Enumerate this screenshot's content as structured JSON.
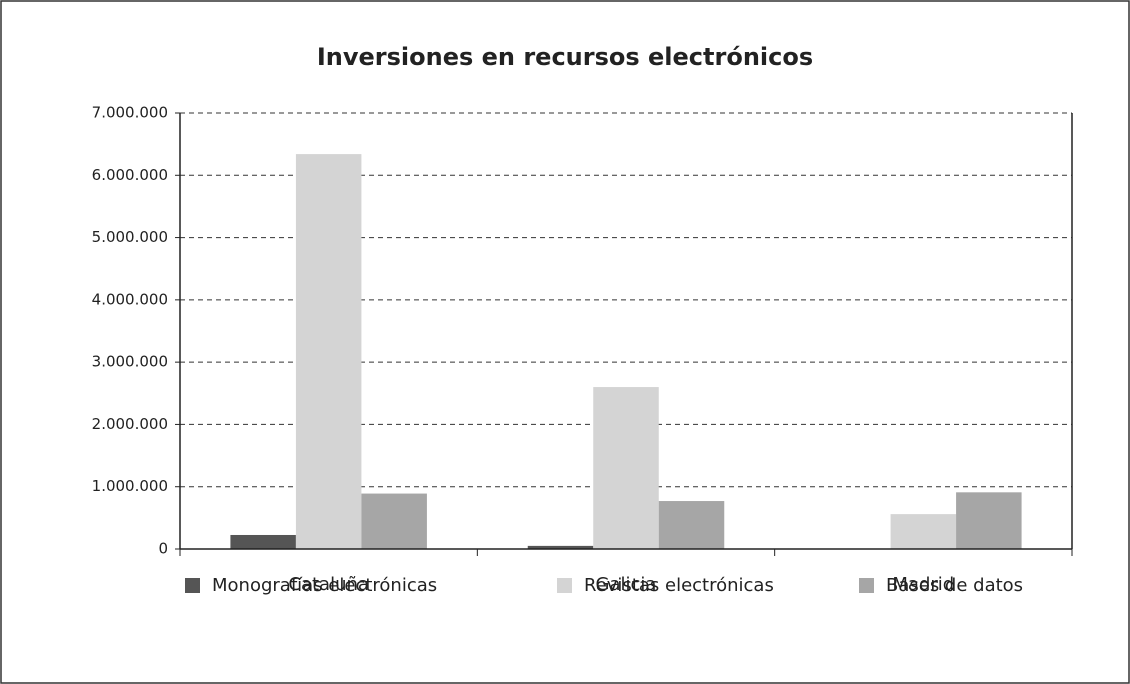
{
  "chart_data": {
    "type": "bar",
    "title": "Inversiones en recursos electrónicos",
    "categories": [
      "Cataluña",
      "Galicia",
      "Madrid"
    ],
    "series": [
      {
        "name": "Monografías electrónicas",
        "color": "#555555",
        "values": [
          225000,
          50000,
          0
        ]
      },
      {
        "name": "Revistas electrónicas",
        "color": "#d4d4d4",
        "values": [
          6340000,
          2600000,
          560000
        ]
      },
      {
        "name": "Bases de datos",
        "color": "#a6a6a6",
        "values": [
          890000,
          770000,
          910000
        ]
      }
    ],
    "ylim": [
      0,
      7000000
    ],
    "yticks": [
      0,
      {
        "value": 1000000,
        "label": "1.000.000"
      },
      {
        "value": 2000000,
        "label": "2.000.000"
      },
      {
        "value": 3000000,
        "label": "3.000.000"
      },
      {
        "value": 4000000,
        "label": "4.000.000"
      },
      {
        "value": 5000000,
        "label": "5.000.000"
      },
      {
        "value": 6000000,
        "label": "6.000.000"
      },
      {
        "value": 7000000,
        "label": "7.000.000"
      }
    ],
    "grid": true,
    "legend": "bottom"
  }
}
